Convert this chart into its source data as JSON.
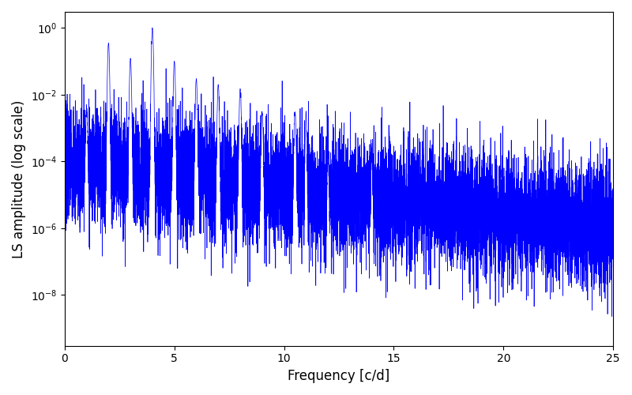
{
  "title": "",
  "xlabel": "Frequency [c/d]",
  "ylabel": "LS amplitude (log scale)",
  "xlim": [
    0,
    25
  ],
  "ylim": [
    3e-10,
    3.0
  ],
  "line_color": "#0000FF",
  "line_width": 0.5,
  "background_color": "#ffffff",
  "figsize": [
    8.0,
    5.0
  ],
  "dpi": 100,
  "freq_max": 25.0,
  "n_points": 10000,
  "seed": 7
}
